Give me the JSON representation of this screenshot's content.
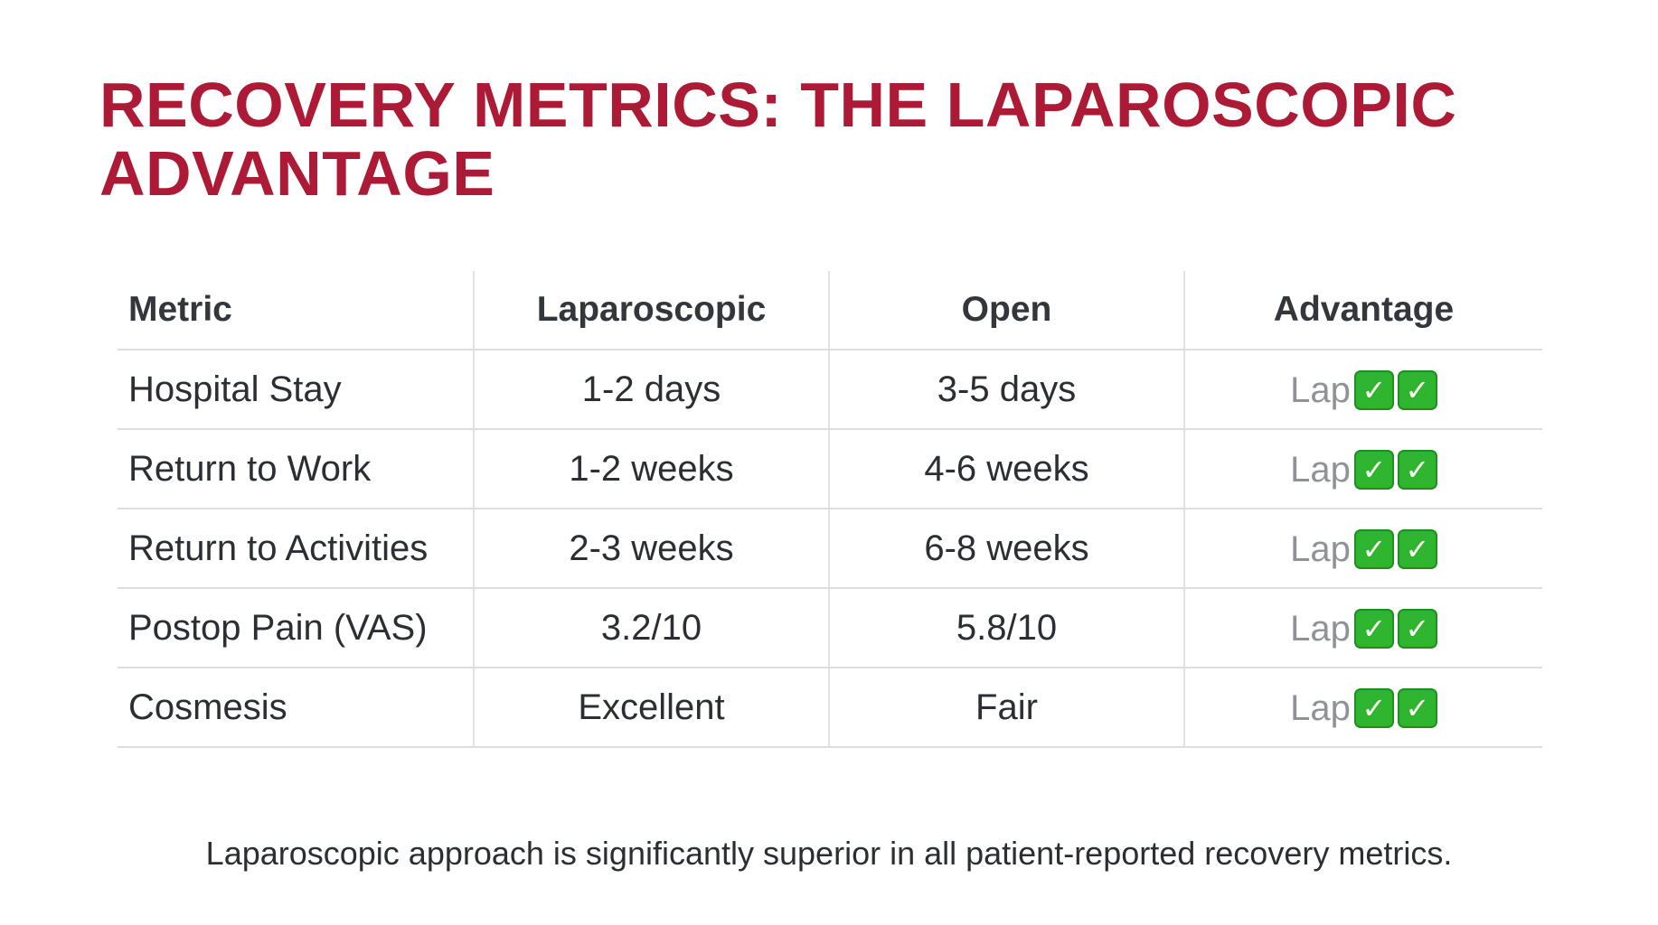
{
  "title": "RECOVERY METRICS: THE LAPAROSCOPIC ADVANTAGE",
  "colors": {
    "title": "#ad1a36",
    "check_green": "#2fb52f",
    "advantage_text": "#8f9397"
  },
  "table": {
    "headers": [
      "Metric",
      "Laparoscopic",
      "Open",
      "Advantage"
    ],
    "rows": [
      {
        "metric": "Hospital Stay",
        "laparoscopic": "1-2 days",
        "open": "3-5 days",
        "advantage": "Lap",
        "checks": 2
      },
      {
        "metric": "Return to Work",
        "laparoscopic": "1-2 weeks",
        "open": "4-6 weeks",
        "advantage": "Lap",
        "checks": 2
      },
      {
        "metric": "Return to Activities",
        "laparoscopic": "2-3 weeks",
        "open": "6-8 weeks",
        "advantage": "Lap",
        "checks": 2
      },
      {
        "metric": "Postop Pain (VAS)",
        "laparoscopic": "3.2/10",
        "open": "5.8/10",
        "advantage": "Lap",
        "checks": 2
      },
      {
        "metric": "Cosmesis",
        "laparoscopic": "Excellent",
        "open": "Fair",
        "advantage": "Lap",
        "checks": 2
      }
    ],
    "check_icon": "check-mark-button-icon"
  },
  "footer": "Laparoscopic approach is significantly superior in all patient-reported recovery metrics."
}
